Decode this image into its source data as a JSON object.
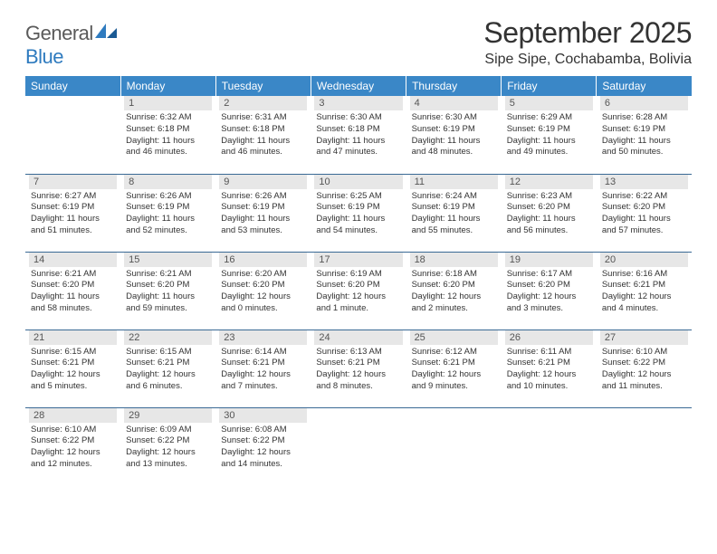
{
  "logo": {
    "word1": "General",
    "word2": "Blue"
  },
  "title": "September 2025",
  "location": "Sipe Sipe, Cochabamba, Bolivia",
  "colors": {
    "header_bg": "#3a87c7",
    "header_text": "#ffffff",
    "daynum_bg": "#e7e7e7",
    "daynum_text": "#555555",
    "row_border": "#3a6a95",
    "logo_gray": "#5a5a5a",
    "logo_blue": "#2f7bbf"
  },
  "weekdays": [
    "Sunday",
    "Monday",
    "Tuesday",
    "Wednesday",
    "Thursday",
    "Friday",
    "Saturday"
  ],
  "weeks": [
    [
      {
        "blank": true
      },
      {
        "n": "1",
        "sr": "6:32 AM",
        "ss": "6:18 PM",
        "dl": "11 hours and 46 minutes."
      },
      {
        "n": "2",
        "sr": "6:31 AM",
        "ss": "6:18 PM",
        "dl": "11 hours and 46 minutes."
      },
      {
        "n": "3",
        "sr": "6:30 AM",
        "ss": "6:18 PM",
        "dl": "11 hours and 47 minutes."
      },
      {
        "n": "4",
        "sr": "6:30 AM",
        "ss": "6:19 PM",
        "dl": "11 hours and 48 minutes."
      },
      {
        "n": "5",
        "sr": "6:29 AM",
        "ss": "6:19 PM",
        "dl": "11 hours and 49 minutes."
      },
      {
        "n": "6",
        "sr": "6:28 AM",
        "ss": "6:19 PM",
        "dl": "11 hours and 50 minutes."
      }
    ],
    [
      {
        "n": "7",
        "sr": "6:27 AM",
        "ss": "6:19 PM",
        "dl": "11 hours and 51 minutes."
      },
      {
        "n": "8",
        "sr": "6:26 AM",
        "ss": "6:19 PM",
        "dl": "11 hours and 52 minutes."
      },
      {
        "n": "9",
        "sr": "6:26 AM",
        "ss": "6:19 PM",
        "dl": "11 hours and 53 minutes."
      },
      {
        "n": "10",
        "sr": "6:25 AM",
        "ss": "6:19 PM",
        "dl": "11 hours and 54 minutes."
      },
      {
        "n": "11",
        "sr": "6:24 AM",
        "ss": "6:19 PM",
        "dl": "11 hours and 55 minutes."
      },
      {
        "n": "12",
        "sr": "6:23 AM",
        "ss": "6:20 PM",
        "dl": "11 hours and 56 minutes."
      },
      {
        "n": "13",
        "sr": "6:22 AM",
        "ss": "6:20 PM",
        "dl": "11 hours and 57 minutes."
      }
    ],
    [
      {
        "n": "14",
        "sr": "6:21 AM",
        "ss": "6:20 PM",
        "dl": "11 hours and 58 minutes."
      },
      {
        "n": "15",
        "sr": "6:21 AM",
        "ss": "6:20 PM",
        "dl": "11 hours and 59 minutes."
      },
      {
        "n": "16",
        "sr": "6:20 AM",
        "ss": "6:20 PM",
        "dl": "12 hours and 0 minutes."
      },
      {
        "n": "17",
        "sr": "6:19 AM",
        "ss": "6:20 PM",
        "dl": "12 hours and 1 minute."
      },
      {
        "n": "18",
        "sr": "6:18 AM",
        "ss": "6:20 PM",
        "dl": "12 hours and 2 minutes."
      },
      {
        "n": "19",
        "sr": "6:17 AM",
        "ss": "6:20 PM",
        "dl": "12 hours and 3 minutes."
      },
      {
        "n": "20",
        "sr": "6:16 AM",
        "ss": "6:21 PM",
        "dl": "12 hours and 4 minutes."
      }
    ],
    [
      {
        "n": "21",
        "sr": "6:15 AM",
        "ss": "6:21 PM",
        "dl": "12 hours and 5 minutes."
      },
      {
        "n": "22",
        "sr": "6:15 AM",
        "ss": "6:21 PM",
        "dl": "12 hours and 6 minutes."
      },
      {
        "n": "23",
        "sr": "6:14 AM",
        "ss": "6:21 PM",
        "dl": "12 hours and 7 minutes."
      },
      {
        "n": "24",
        "sr": "6:13 AM",
        "ss": "6:21 PM",
        "dl": "12 hours and 8 minutes."
      },
      {
        "n": "25",
        "sr": "6:12 AM",
        "ss": "6:21 PM",
        "dl": "12 hours and 9 minutes."
      },
      {
        "n": "26",
        "sr": "6:11 AM",
        "ss": "6:21 PM",
        "dl": "12 hours and 10 minutes."
      },
      {
        "n": "27",
        "sr": "6:10 AM",
        "ss": "6:22 PM",
        "dl": "12 hours and 11 minutes."
      }
    ],
    [
      {
        "n": "28",
        "sr": "6:10 AM",
        "ss": "6:22 PM",
        "dl": "12 hours and 12 minutes."
      },
      {
        "n": "29",
        "sr": "6:09 AM",
        "ss": "6:22 PM",
        "dl": "12 hours and 13 minutes."
      },
      {
        "n": "30",
        "sr": "6:08 AM",
        "ss": "6:22 PM",
        "dl": "12 hours and 14 minutes."
      },
      {
        "blank": true
      },
      {
        "blank": true
      },
      {
        "blank": true
      },
      {
        "blank": true
      }
    ]
  ],
  "labels": {
    "sunrise": "Sunrise:",
    "sunset": "Sunset:",
    "daylight": "Daylight:"
  }
}
